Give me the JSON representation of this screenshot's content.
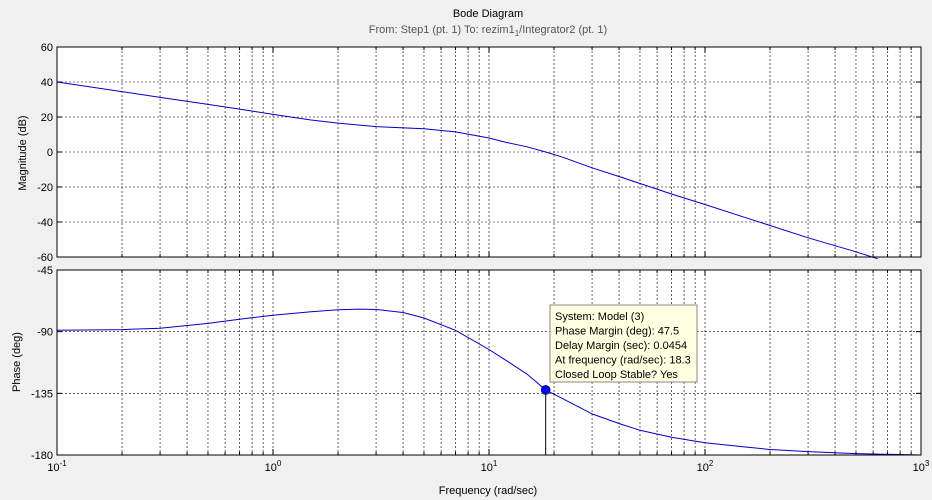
{
  "chart_data": {
    "type": "line",
    "title": "Bode Diagram",
    "subtitle": {
      "prefix": "From: Step1 (pt. 1)  To: rezim1",
      "subscript": "1",
      "suffix": "/Integrator2 (pt. 1)"
    },
    "xlabel": "Frequency  (rad/sec)",
    "xscale": "log",
    "xlim": [
      0.1,
      1000
    ],
    "x_ticks": [
      {
        "base": "10",
        "exp": "-1"
      },
      {
        "base": "10",
        "exp": "0"
      },
      {
        "base": "10",
        "exp": "1"
      },
      {
        "base": "10",
        "exp": "2"
      },
      {
        "base": "10",
        "exp": "3"
      }
    ],
    "grid": true,
    "magnitude": {
      "ylabel": "Magnitude (dB)",
      "ylim": [
        -60,
        60
      ],
      "y_ticks": [
        "60",
        "40",
        "20",
        "0",
        "-20",
        "-40",
        "-60"
      ],
      "x": [
        0.1,
        0.2,
        0.3,
        0.5,
        0.7,
        1,
        1.5,
        2,
        3,
        5,
        7,
        10,
        12,
        15,
        18.3,
        22,
        30,
        40,
        50,
        70,
        100,
        150,
        200,
        300,
        500,
        630
      ],
      "values": [
        40,
        34.5,
        31.2,
        27.2,
        24.5,
        21.5,
        18.3,
        16.5,
        14.5,
        13.3,
        11.5,
        8,
        5.5,
        3,
        0,
        -3,
        -9,
        -14,
        -18,
        -24,
        -30,
        -37,
        -42,
        -49,
        -57,
        -61
      ]
    },
    "phase": {
      "ylabel": "Phase (deg)",
      "ylim": [
        -180,
        -45
      ],
      "y_ticks": [
        "-45",
        "-90",
        "-135",
        "-180"
      ],
      "x": [
        0.1,
        0.2,
        0.3,
        0.5,
        0.7,
        1,
        1.5,
        2,
        2.5,
        3,
        4,
        5,
        7,
        10,
        12,
        15,
        18.3,
        22,
        30,
        40,
        50,
        70,
        100,
        150,
        200,
        300,
        500,
        1000
      ],
      "values": [
        -89,
        -88.5,
        -87.5,
        -84,
        -81,
        -78,
        -75.5,
        -74,
        -73.5,
        -73.8,
        -76,
        -80,
        -89,
        -103,
        -111,
        -121,
        -132.5,
        -139,
        -150,
        -157,
        -162,
        -167,
        -171,
        -174,
        -176,
        -177.5,
        -179,
        -180
      ]
    },
    "datatip": {
      "x": 18.3,
      "y": -132.5,
      "lines": [
        "System: Model (3)",
        "Phase Margin (deg): 47.5",
        "Delay Margin (sec): 0.0454",
        "At frequency (rad/sec): 18.3",
        "Closed Loop Stable? Yes"
      ]
    },
    "colors": {
      "series": "#0000c8",
      "marker": "#0000ff",
      "tip_bg": "#ffffe1",
      "plot_bg": "#ffffff",
      "figure_bg": "#f0f0f0"
    }
  }
}
